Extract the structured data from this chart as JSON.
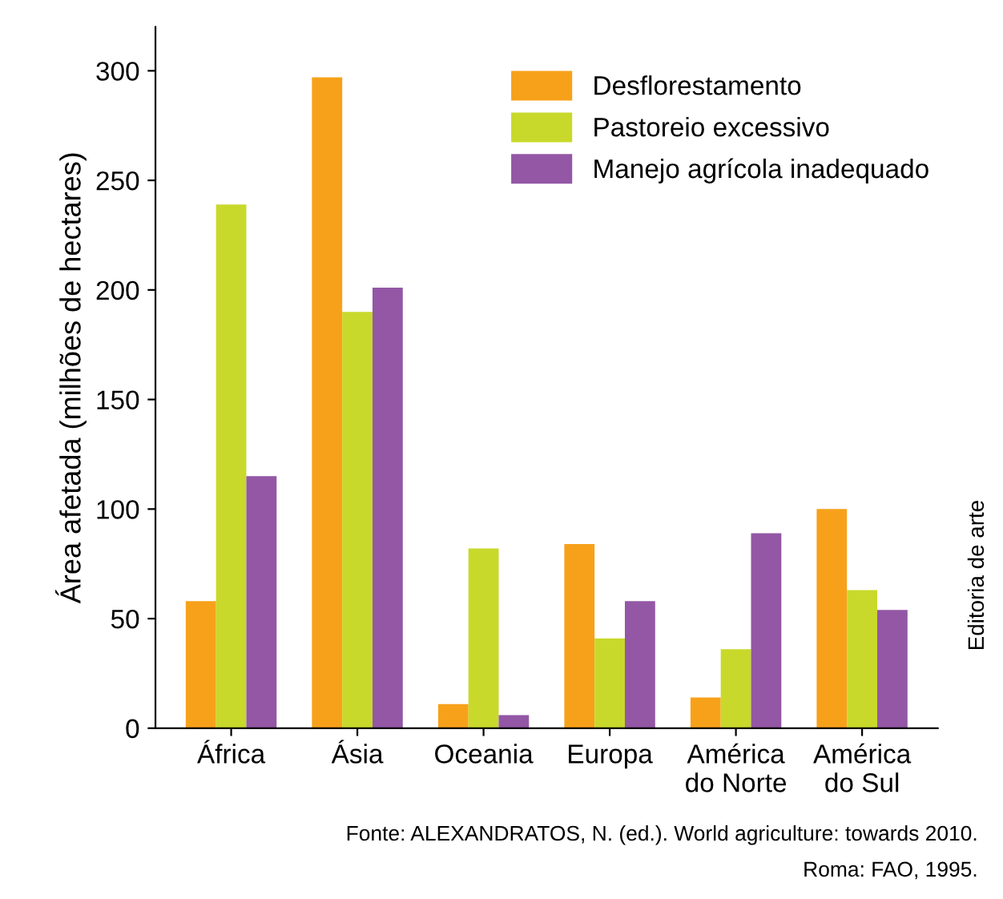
{
  "chart_data": {
    "type": "bar",
    "ylabel": "Área afetada (milhões de hectares)",
    "categories": [
      "África",
      "Ásia",
      "Oceania",
      "Europa",
      "América\ndo Norte",
      "América\ndo Sul"
    ],
    "series": [
      {
        "name": "Desflorestamento",
        "color": "#f7a11a",
        "values": [
          58,
          297,
          11,
          84,
          14,
          100
        ]
      },
      {
        "name": "Pastoreio excessivo",
        "color": "#c8d92b",
        "values": [
          239,
          190,
          82,
          41,
          36,
          63
        ]
      },
      {
        "name": "Manejo agrícola inadequado",
        "color": "#9357a5",
        "values": [
          115,
          201,
          6,
          58,
          89,
          54
        ]
      }
    ],
    "ylim": [
      0,
      320
    ],
    "yticks": [
      0,
      50,
      100,
      150,
      200,
      250,
      300
    ],
    "grid": false,
    "legend": "top right",
    "annotations": [
      "Fonte: ALEXANDRATOS, N. (ed.). World agriculture: towards 2010.",
      "Roma: FAO, 1995.",
      "Editoria de arte"
    ]
  }
}
